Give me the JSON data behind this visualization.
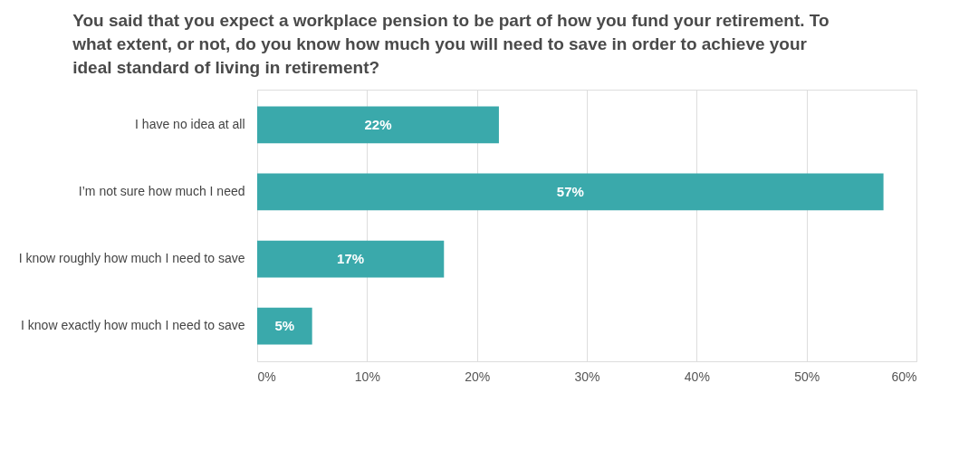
{
  "chart_data": {
    "type": "bar",
    "orientation": "horizontal",
    "title": "You said that you expect a workplace pension to be part of how you fund your retirement. To what extent, or not, do you know how much you will need to save in order to achieve your ideal standard of living in retirement?",
    "categories": [
      "I have no idea at all",
      "I’m not sure how much I need",
      "I know roughly how much I need to save",
      "I know exactly how much I need to save"
    ],
    "values": [
      22,
      57,
      17,
      5
    ],
    "value_labels": [
      "22%",
      "57%",
      "17%",
      "5%"
    ],
    "color": "#3aa9ab",
    "xlim": [
      0,
      60
    ],
    "xticks": [
      {
        "value": 0,
        "label": "0%"
      },
      {
        "value": 10,
        "label": "10%"
      },
      {
        "value": 20,
        "label": "20%"
      },
      {
        "value": 30,
        "label": "30%"
      },
      {
        "value": 40,
        "label": "40%"
      },
      {
        "value": 50,
        "label": "50%"
      },
      {
        "value": 60,
        "label": "60%"
      }
    ],
    "grid": "x"
  }
}
